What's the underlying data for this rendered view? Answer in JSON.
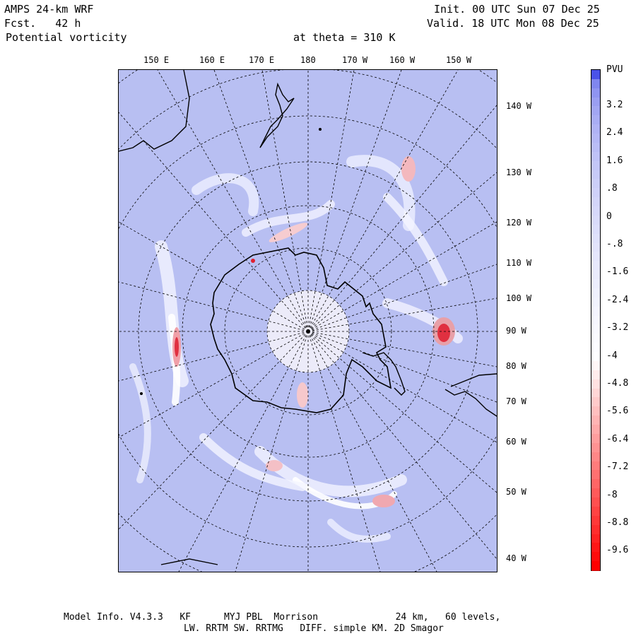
{
  "header": {
    "model": "AMPS 24-km WRF",
    "forecast": "Fcst.   42 h",
    "field": "Potential vorticity",
    "level": "at theta = 310 K",
    "init": "Init. 00 UTC Sun 07 Dec 25",
    "valid": "Valid. 18 UTC Mon 08 Dec 25"
  },
  "map": {
    "projection": "south polar stereographic",
    "background_color": "#b8bff2",
    "coast_color": "#000000",
    "longitude_labels": [
      "150 E",
      "160 E",
      "170 E",
      "180",
      "170 W",
      "160 W",
      "150 W"
    ],
    "latitude_side_labels": [
      "140 W",
      "130 W",
      "120 W",
      "110 W",
      "100 W",
      "90 W",
      "80 W",
      "70 W",
      "60 W",
      "50 W",
      "40 W"
    ]
  },
  "colorbar": {
    "unit": "PVU",
    "labels": [
      "3.2",
      "2.4",
      "1.6",
      ".8",
      "0",
      "-.8",
      "-1.6",
      "-2.4",
      "-3.2",
      "-4",
      "-4.8",
      "-5.6",
      "-6.4",
      "-7.2",
      "-8",
      "-8.8",
      "-9.6"
    ],
    "top_color": "#4a52e8",
    "mid_color": "#ffffff",
    "bottom_color": "#ff0000"
  },
  "footer": {
    "line1": "Model Info. V4.3.3   KF      MYJ PBL  Morrison              24 km,   60 levels,",
    "line2": "LW. RRTM SW. RRTMG   DIFF. simple KM. 2D Smagor"
  }
}
